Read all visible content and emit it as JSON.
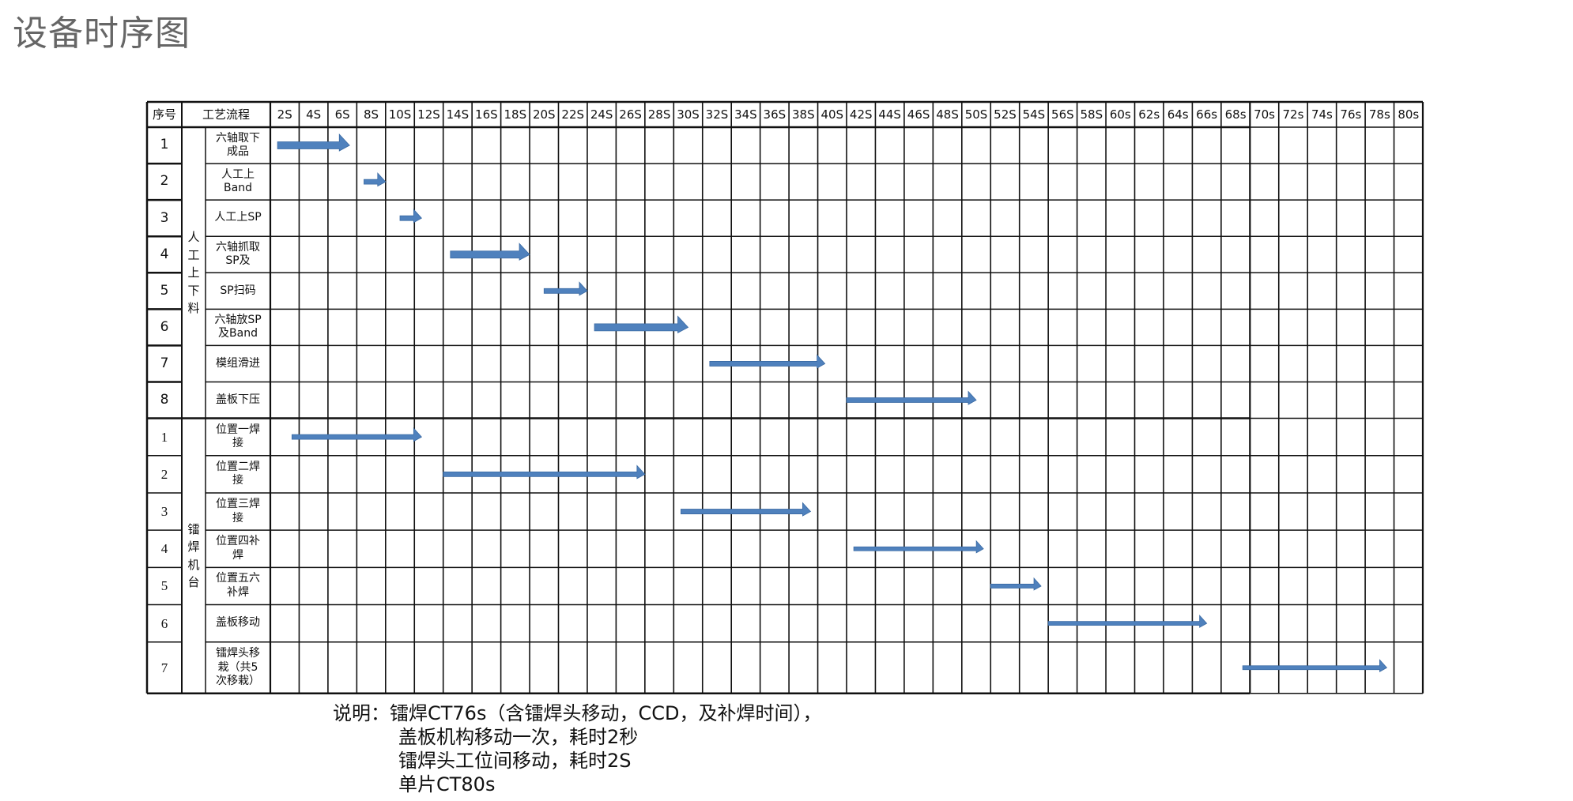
{
  "title": "设备时序图",
  "colors": {
    "arrow": "#4f81bd",
    "arrow_edge": "#3a6aa3",
    "grid": "#111111",
    "title": "#666666"
  },
  "chart_data": {
    "type": "gantt",
    "header": {
      "index": "序号",
      "process": "工艺流程"
    },
    "time_columns": [
      "2S",
      "4S",
      "6S",
      "8S",
      "10S",
      "12S",
      "14S",
      "16S",
      "18S",
      "20S",
      "22S",
      "24S",
      "26S",
      "28S",
      "30S",
      "32S",
      "34S",
      "36S",
      "38S",
      "40S",
      "42S",
      "44S",
      "46S",
      "48S",
      "50S",
      "52S",
      "54S",
      "56S",
      "58S",
      "60s",
      "62s",
      "64s",
      "66s",
      "68s",
      "70s",
      "72s",
      "74s",
      "76s",
      "78s",
      "80s"
    ],
    "time_unit_seconds_per_column": 2,
    "groups": [
      {
        "name": "人\n工\n上\n下\n料",
        "rows": [
          {
            "index": "1",
            "label": "六轴取下\n成品",
            "start": 0.5,
            "end": 5.5,
            "weight": "thick"
          },
          {
            "index": "2",
            "label": "人工上\nBand",
            "start": 6.5,
            "end": 8,
            "weight": "medium"
          },
          {
            "index": "3",
            "label": "人工上SP",
            "start": 9,
            "end": 10.5,
            "weight": "medium"
          },
          {
            "index": "4",
            "label": "六轴抓取\nSP及",
            "start": 12.5,
            "end": 18,
            "weight": "thick"
          },
          {
            "index": "5",
            "label": "SP扫码",
            "start": 19,
            "end": 22,
            "weight": "medium"
          },
          {
            "index": "6",
            "label": "六轴放SP\n及Band",
            "start": 22.5,
            "end": 29,
            "weight": "thick"
          },
          {
            "index": "7",
            "label": "模组滑进",
            "start": 30.5,
            "end": 38.5,
            "weight": "medium"
          },
          {
            "index": "8",
            "label": "盖板下压",
            "start": 40,
            "end": 49,
            "weight": "medium"
          }
        ]
      },
      {
        "name": "镭\n焊\n机\n台",
        "rows": [
          {
            "index": "1",
            "label": "位置一焊\n接",
            "start": 1.5,
            "end": 10.5,
            "weight": "medium"
          },
          {
            "index": "2",
            "label": "位置二焊\n接",
            "start": 12,
            "end": 26,
            "weight": "medium"
          },
          {
            "index": "3",
            "label": "位置三焊\n接",
            "start": 28.5,
            "end": 37.5,
            "weight": "medium"
          },
          {
            "index": "4",
            "label": "位置四补\n焊",
            "start": 40.5,
            "end": 49.5,
            "weight": "thin"
          },
          {
            "index": "5",
            "label": "位置五六\n补焊",
            "start": 50,
            "end": 53.5,
            "weight": "thin"
          },
          {
            "index": "6",
            "label": "盖板移动",
            "start": 54,
            "end": 65,
            "weight": "thin"
          },
          {
            "index": "7",
            "label": "镭焊头移\n栽（共5\n次移栽）",
            "start": 67.5,
            "end": 77.5,
            "weight": "thin"
          }
        ]
      }
    ]
  },
  "notes": {
    "line1": "说明：镭焊CT76s（含镭焊头移动，CCD，及补焊时间），",
    "line2": "盖板机构移动一次，耗时2秒",
    "line3": "镭焊头工位间移动，耗时2S",
    "line4": "单片CT80s"
  }
}
